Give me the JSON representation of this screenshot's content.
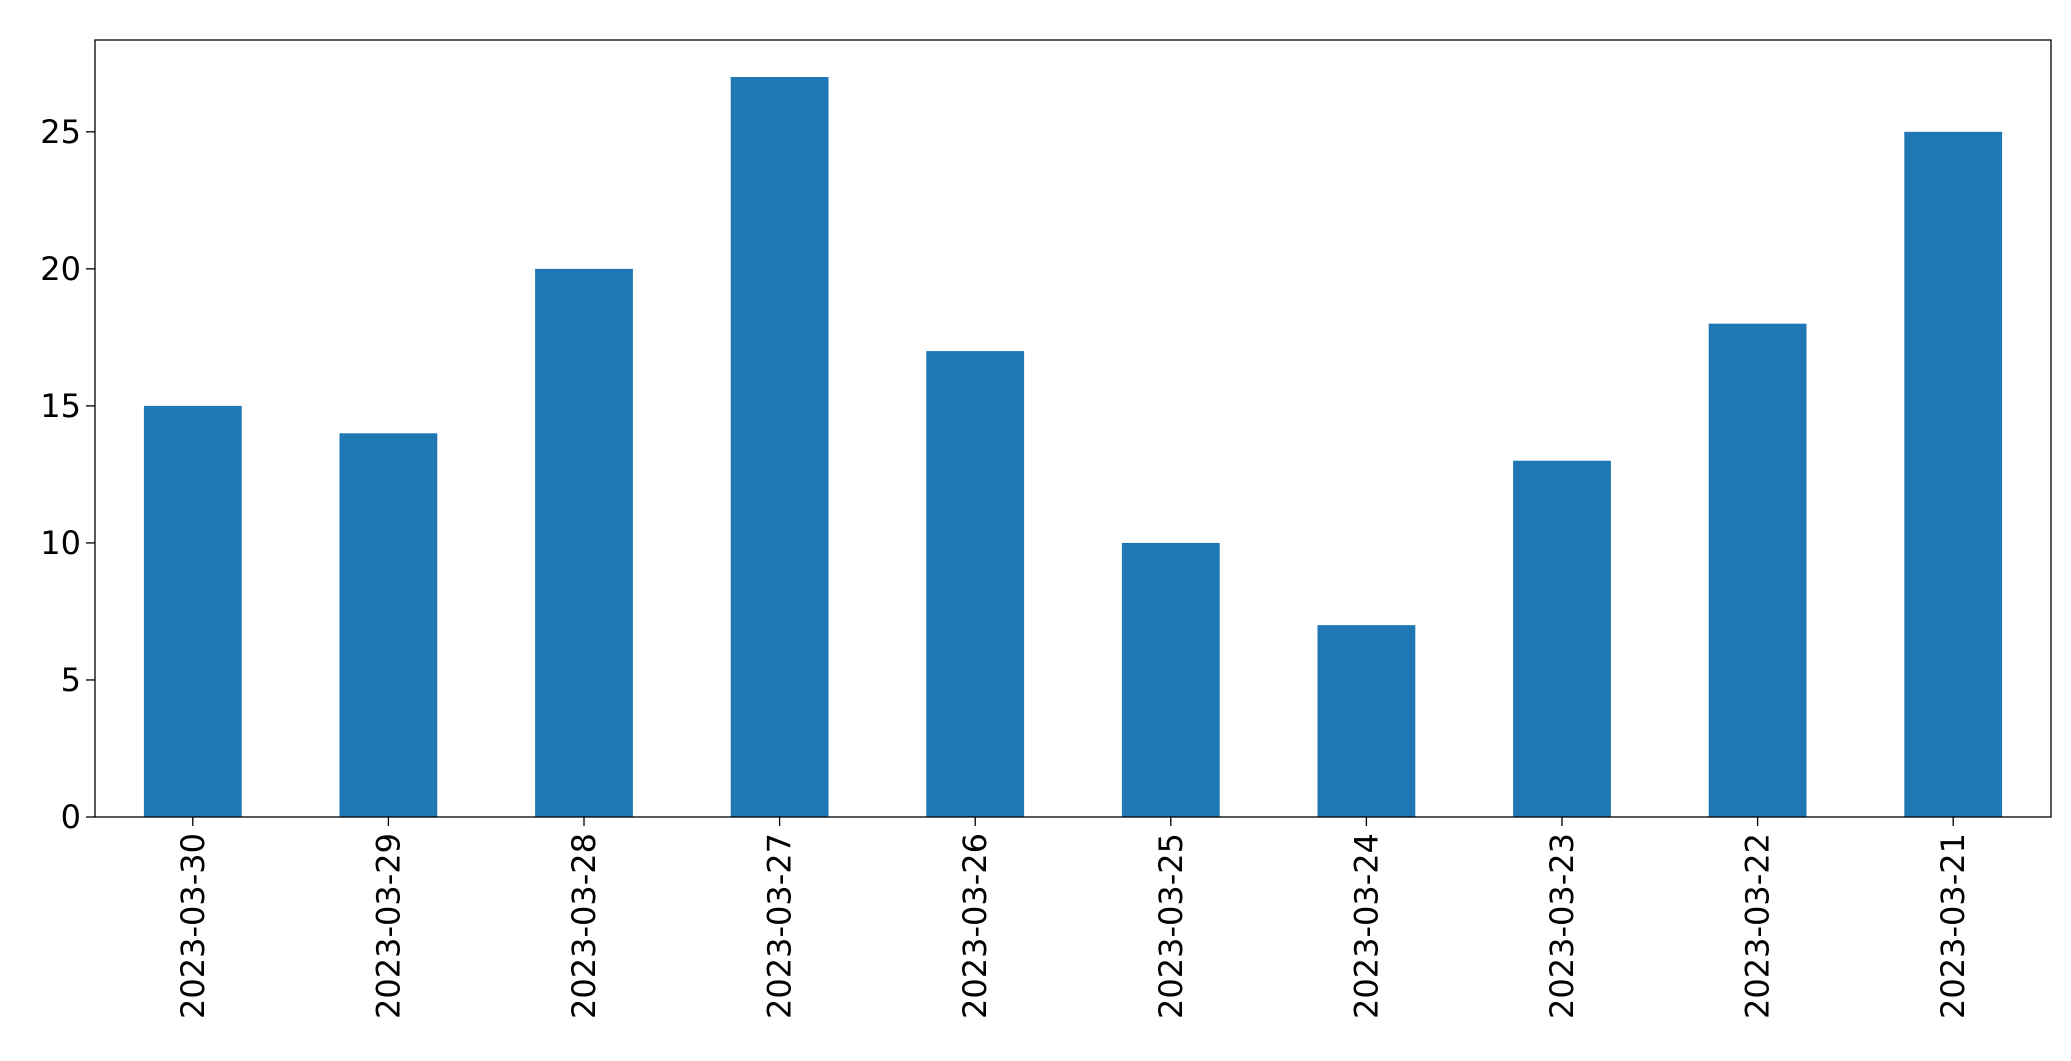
{
  "chart_data": {
    "type": "bar",
    "categories": [
      "2023-03-30",
      "2023-03-29",
      "2023-03-28",
      "2023-03-27",
      "2023-03-26",
      "2023-03-25",
      "2023-03-24",
      "2023-03-23",
      "2023-03-22",
      "2023-03-21"
    ],
    "values": [
      15,
      14,
      20,
      27,
      17,
      10,
      7,
      13,
      18,
      25
    ],
    "color": "#1f77b4",
    "ylim": [
      0,
      28.35
    ],
    "yticks": [
      0,
      5,
      10,
      15,
      20,
      25
    ],
    "grid": false
  }
}
